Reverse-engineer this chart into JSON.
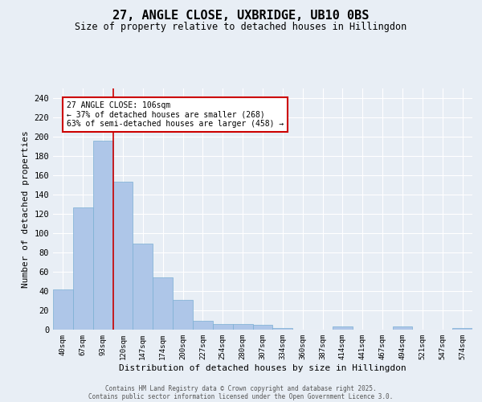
{
  "title": "27, ANGLE CLOSE, UXBRIDGE, UB10 0BS",
  "subtitle": "Size of property relative to detached houses in Hillingdon",
  "xlabel": "Distribution of detached houses by size in Hillingdon",
  "ylabel": "Number of detached properties",
  "categories": [
    "40sqm",
    "67sqm",
    "93sqm",
    "120sqm",
    "147sqm",
    "174sqm",
    "200sqm",
    "227sqm",
    "254sqm",
    "280sqm",
    "307sqm",
    "334sqm",
    "360sqm",
    "387sqm",
    "414sqm",
    "441sqm",
    "467sqm",
    "494sqm",
    "521sqm",
    "547sqm",
    "574sqm"
  ],
  "values": [
    42,
    127,
    196,
    153,
    89,
    54,
    31,
    9,
    6,
    6,
    5,
    2,
    0,
    0,
    3,
    0,
    0,
    3,
    0,
    0,
    2
  ],
  "bar_color": "#aec6e8",
  "bar_edge_color": "#7aafd4",
  "background_color": "#e8eef5",
  "grid_color": "#ffffff",
  "red_line_x": 2.5,
  "annotation_text": "27 ANGLE CLOSE: 106sqm\n← 37% of detached houses are smaller (268)\n63% of semi-detached houses are larger (458) →",
  "annotation_box_color": "#ffffff",
  "annotation_box_edge_color": "#cc0000",
  "ylim": [
    0,
    250
  ],
  "yticks": [
    0,
    20,
    40,
    60,
    80,
    100,
    120,
    140,
    160,
    180,
    200,
    220,
    240
  ],
  "footer_line1": "Contains HM Land Registry data © Crown copyright and database right 2025.",
  "footer_line2": "Contains public sector information licensed under the Open Government Licence 3.0."
}
